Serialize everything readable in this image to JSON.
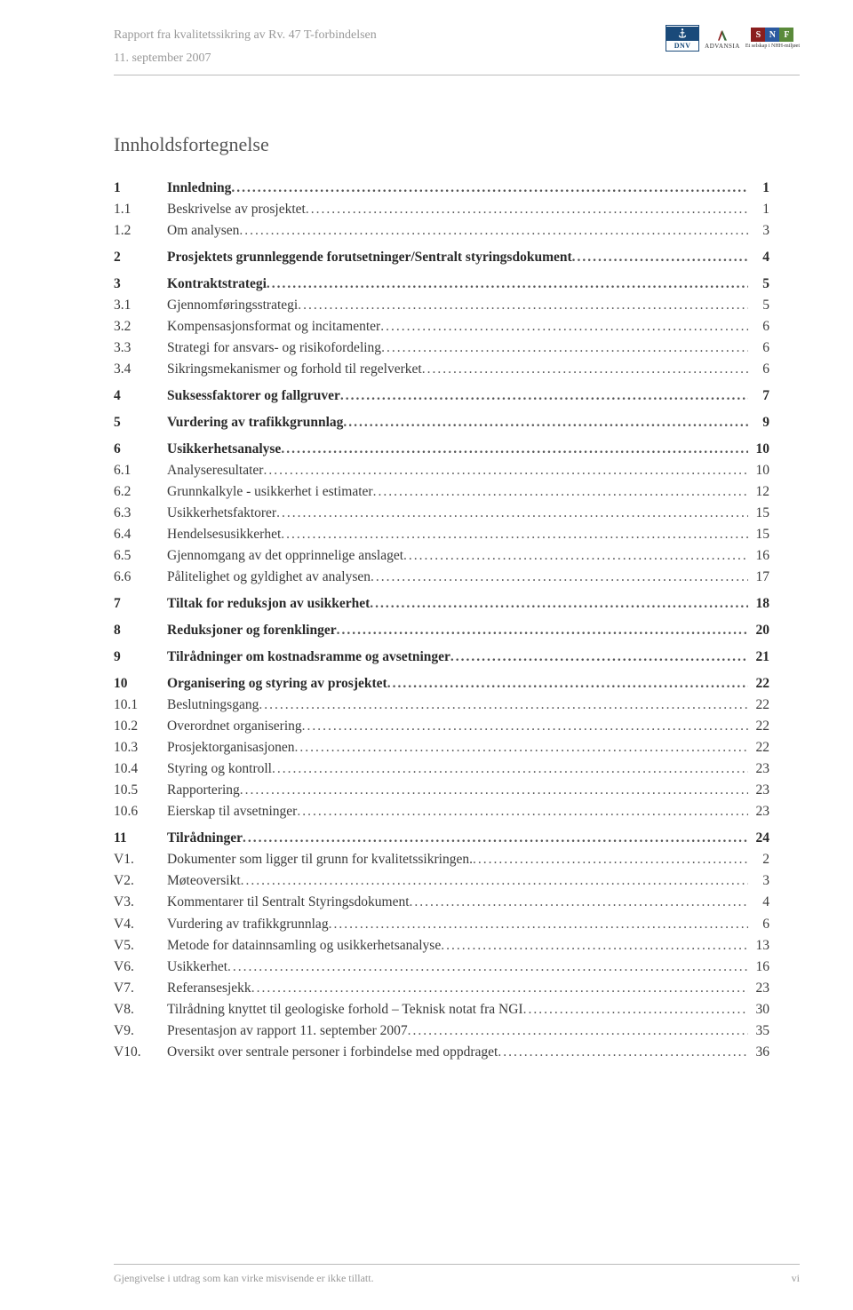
{
  "header": {
    "title": "Rapport fra kvalitetssikring av Rv. 47 T-forbindelsen",
    "date": "11. september 2007"
  },
  "tocTitle": "Innholdsfortegnelse",
  "toc": [
    {
      "level": 1,
      "num": "1",
      "text": "Innledning",
      "page": "1"
    },
    {
      "level": 2,
      "num": "1.1",
      "text": "Beskrivelse av prosjektet",
      "page": "1"
    },
    {
      "level": 2,
      "num": "1.2",
      "text": "Om analysen",
      "page": "3"
    },
    {
      "gap": true
    },
    {
      "level": 1,
      "num": "2",
      "text": "Prosjektets grunnleggende forutsetninger/Sentralt styringsdokument",
      "page": "4"
    },
    {
      "gap": true
    },
    {
      "level": 1,
      "num": "3",
      "text": "Kontraktstrategi",
      "page": "5"
    },
    {
      "level": 2,
      "num": "3.1",
      "text": "Gjennomføringsstrategi",
      "page": "5"
    },
    {
      "level": 2,
      "num": "3.2",
      "text": "Kompensasjonsformat og incitamenter",
      "page": "6"
    },
    {
      "level": 2,
      "num": "3.3",
      "text": "Strategi for ansvars- og risikofordeling",
      "page": "6"
    },
    {
      "level": 2,
      "num": "3.4",
      "text": "Sikringsmekanismer og forhold til regelverket",
      "page": "6"
    },
    {
      "gap": true
    },
    {
      "level": 1,
      "num": "4",
      "text": "Suksessfaktorer og fallgruver",
      "page": "7"
    },
    {
      "gap": true
    },
    {
      "level": 1,
      "num": "5",
      "text": "Vurdering av trafikkgrunnlag",
      "page": "9"
    },
    {
      "gap": true
    },
    {
      "level": 1,
      "num": "6",
      "text": "Usikkerhetsanalyse",
      "page": "10"
    },
    {
      "level": 2,
      "num": "6.1",
      "text": "Analyseresultater",
      "page": "10"
    },
    {
      "level": 2,
      "num": "6.2",
      "text": "Grunnkalkyle - usikkerhet i estimater",
      "page": "12"
    },
    {
      "level": 2,
      "num": "6.3",
      "text": "Usikkerhetsfaktorer",
      "page": "15"
    },
    {
      "level": 2,
      "num": "6.4",
      "text": "Hendelsesusikkerhet",
      "page": "15"
    },
    {
      "level": 2,
      "num": "6.5",
      "text": "Gjennomgang av det opprinnelige anslaget",
      "page": "16"
    },
    {
      "level": 2,
      "num": "6.6",
      "text": "Pålitelighet og gyldighet av analysen",
      "page": "17"
    },
    {
      "gap": true
    },
    {
      "level": 1,
      "num": "7",
      "text": "Tiltak for reduksjon av usikkerhet",
      "page": "18"
    },
    {
      "gap": true
    },
    {
      "level": 1,
      "num": "8",
      "text": "Reduksjoner og forenklinger",
      "page": "20"
    },
    {
      "gap": true
    },
    {
      "level": 1,
      "num": "9",
      "text": "Tilrådninger om kostnadsramme og avsetninger",
      "page": "21"
    },
    {
      "gap": true
    },
    {
      "level": 1,
      "num": "10",
      "text": "Organisering og styring av prosjektet",
      "page": "22"
    },
    {
      "level": 2,
      "num": "10.1",
      "text": "Beslutningsgang",
      "page": "22"
    },
    {
      "level": 2,
      "num": "10.2",
      "text": "Overordnet organisering",
      "page": "22"
    },
    {
      "level": 2,
      "num": "10.3",
      "text": "Prosjektorganisasjonen",
      "page": "22"
    },
    {
      "level": 2,
      "num": "10.4",
      "text": "Styring og kontroll",
      "page": "23"
    },
    {
      "level": 2,
      "num": "10.5",
      "text": "Rapportering",
      "page": "23"
    },
    {
      "level": 2,
      "num": "10.6",
      "text": "Eierskap til avsetninger",
      "page": "23"
    },
    {
      "gap": true
    },
    {
      "level": 1,
      "num": "11",
      "text": "Tilrådninger",
      "page": "24"
    },
    {
      "level": 2,
      "num": "V1.",
      "text": "Dokumenter som ligger til grunn for kvalitetssikringen.",
      "page": "2"
    },
    {
      "level": 2,
      "num": "V2.",
      "text": "Møteoversikt",
      "page": "3"
    },
    {
      "level": 2,
      "num": "V3.",
      "text": "Kommentarer til Sentralt Styringsdokument",
      "page": "4"
    },
    {
      "level": 2,
      "num": "V4.",
      "text": "Vurdering av trafikkgrunnlag",
      "page": "6"
    },
    {
      "level": 2,
      "num": "V5.",
      "text": "Metode for datainnsamling og usikkerhetsanalyse",
      "page": "13"
    },
    {
      "level": 2,
      "num": "V6.",
      "text": "Usikkerhet",
      "page": "16"
    },
    {
      "level": 2,
      "num": "V7.",
      "text": "Referansesjekk",
      "page": "23"
    },
    {
      "level": 2,
      "num": "V8.",
      "text": "Tilrådning knyttet til geologiske forhold – Teknisk notat fra NGI",
      "page": "30"
    },
    {
      "level": 2,
      "num": "V9.",
      "text": "Presentasjon av rapport 11. september 2007",
      "page": "35"
    },
    {
      "level": 2,
      "num": "V10.",
      "text": "Oversikt over sentrale personer i forbindelse med oppdraget",
      "page": "36"
    }
  ],
  "footer": {
    "left": "Gjengivelse i utdrag som kan virke misvisende er ikke tillatt.",
    "right": "vi"
  },
  "logos": {
    "dnv": "DNV",
    "advansia": "ADVANSIA",
    "snf": [
      "S",
      "N",
      "F"
    ],
    "snf_sub": "Et selskap i NHH-miljøet",
    "snf_colors": [
      "#8a1f1f",
      "#2c5aa0",
      "#5a8a3a"
    ]
  }
}
